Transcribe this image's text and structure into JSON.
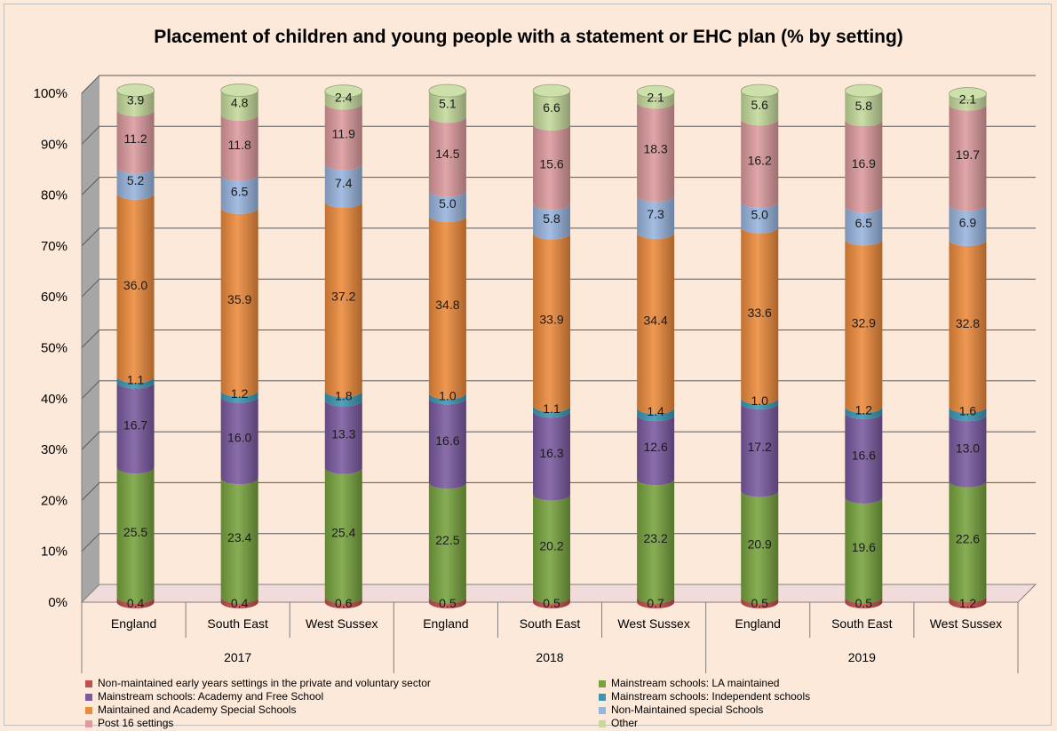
{
  "chart_data": {
    "type": "bar",
    "stacked": true,
    "title": "Placement of children and young people with a statement or EHC plan (% by setting)",
    "y_axis": {
      "min": 0,
      "max": 100,
      "ticks": [
        "0%",
        "10%",
        "20%",
        "30%",
        "40%",
        "50%",
        "60%",
        "70%",
        "80%",
        "90%",
        "100%"
      ]
    },
    "groups": [
      {
        "year": "2017",
        "places": [
          "England",
          "South East",
          "West Sussex"
        ]
      },
      {
        "year": "2018",
        "places": [
          "England",
          "South East",
          "West Sussex"
        ]
      },
      {
        "year": "2019",
        "places": [
          "England",
          "South East",
          "West Sussex"
        ]
      }
    ],
    "series": [
      {
        "name": "Non-maintained early years settings in the private and voluntary sector",
        "color": "#c0504d",
        "values": [
          0.4,
          0.4,
          0.6,
          0.5,
          0.5,
          0.7,
          0.5,
          0.5,
          1.2
        ]
      },
      {
        "name": "Mainstream schools: LA maintained",
        "color": "#77a33e",
        "values": [
          25.5,
          23.4,
          25.4,
          22.5,
          20.2,
          23.2,
          20.9,
          19.6,
          22.6
        ]
      },
      {
        "name": "Mainstream schools: Academy and Free School",
        "color": "#7a5aa0",
        "values": [
          16.7,
          16.0,
          13.3,
          16.6,
          16.3,
          12.6,
          17.2,
          16.6,
          13.0
        ]
      },
      {
        "name": "Mainstream schools: Independent schools",
        "color": "#3a97b3",
        "values": [
          1.1,
          1.2,
          1.8,
          1.0,
          1.1,
          1.4,
          1.0,
          1.2,
          1.6
        ]
      },
      {
        "name": "Maintained and Academy Special Schools",
        "color": "#ec8a3c",
        "values": [
          36.0,
          35.9,
          37.2,
          34.8,
          33.9,
          34.4,
          33.6,
          32.9,
          32.8
        ]
      },
      {
        "name": "Non-Maintained special Schools",
        "color": "#98b4de",
        "values": [
          5.2,
          6.5,
          7.4,
          5.0,
          5.8,
          7.3,
          5.0,
          6.5,
          6.9
        ]
      },
      {
        "name": "Post 16 settings",
        "color": "#dc9a9d",
        "values": [
          11.2,
          11.8,
          11.9,
          14.5,
          15.6,
          18.3,
          16.2,
          16.9,
          19.7
        ]
      },
      {
        "name": "Other",
        "color": "#c4d99b",
        "values": [
          3.9,
          4.8,
          2.4,
          5.1,
          6.6,
          2.1,
          5.6,
          5.8,
          2.1
        ]
      }
    ],
    "legend_position": "bottom",
    "grid": true
  }
}
